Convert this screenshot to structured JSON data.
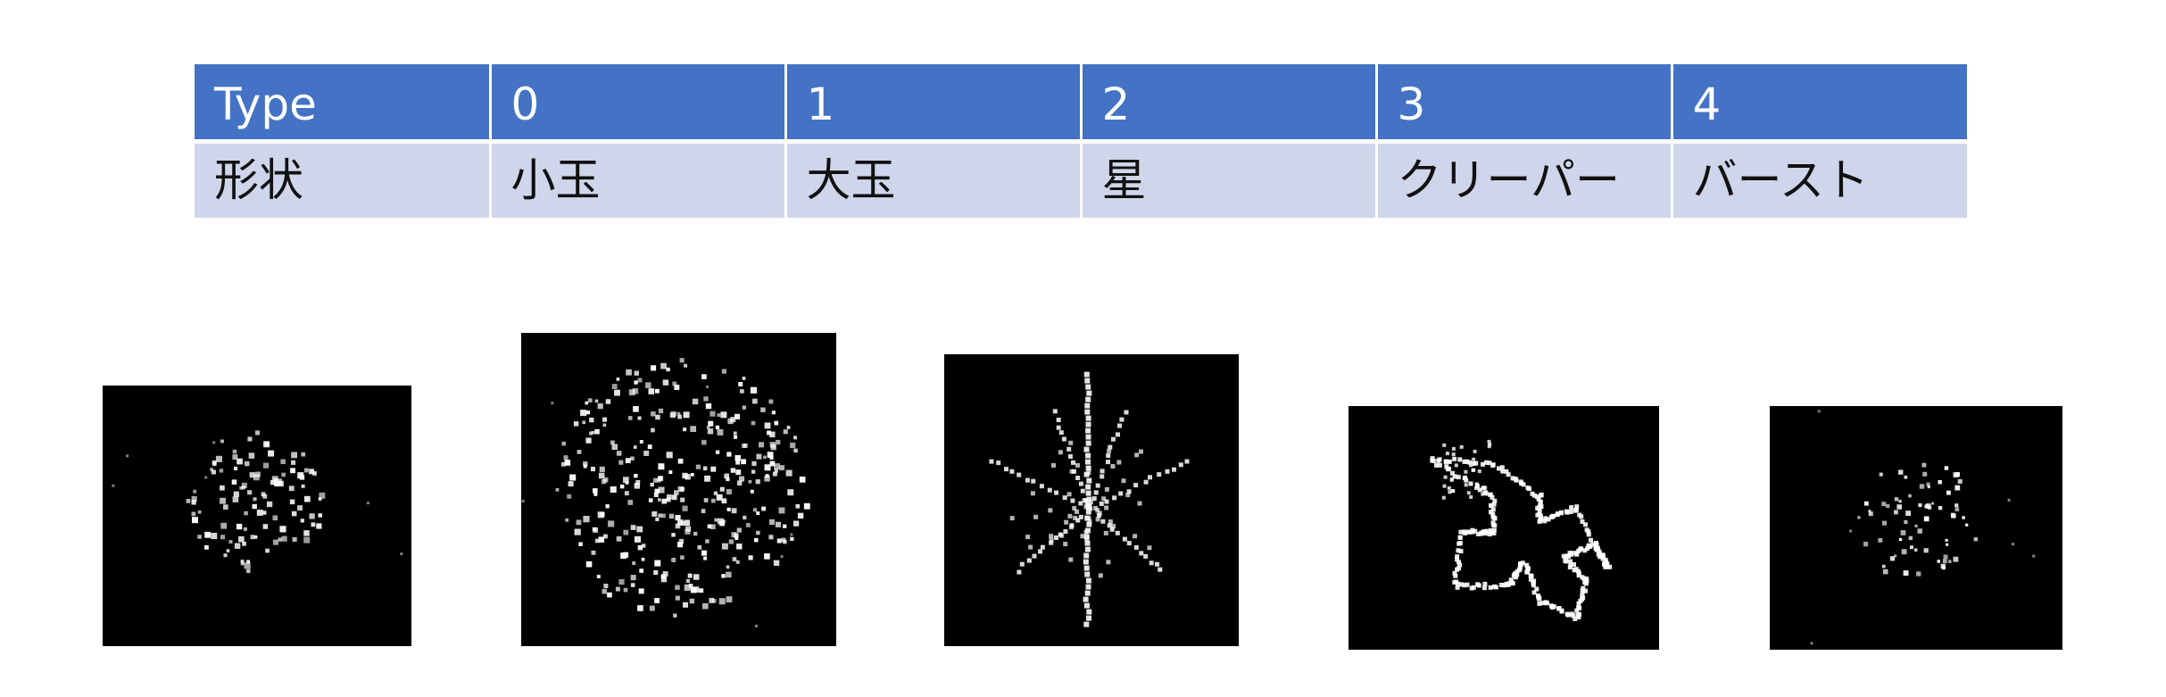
{
  "table": {
    "header": [
      "Type",
      "0",
      "1",
      "2",
      "3",
      "4"
    ],
    "row": [
      "形状",
      "小玉",
      "大玉",
      "星",
      "クリーパー",
      "バースト"
    ]
  },
  "images": [
    {
      "type": "0",
      "shape": "small-ball"
    },
    {
      "type": "1",
      "shape": "large-ball"
    },
    {
      "type": "2",
      "shape": "star"
    },
    {
      "type": "3",
      "shape": "creeper"
    },
    {
      "type": "4",
      "shape": "burst"
    }
  ],
  "colors": {
    "header_bg": "#4472c4",
    "row_bg": "#cfd5ea",
    "image_bg": "#000000",
    "particle": "#ffffff"
  }
}
